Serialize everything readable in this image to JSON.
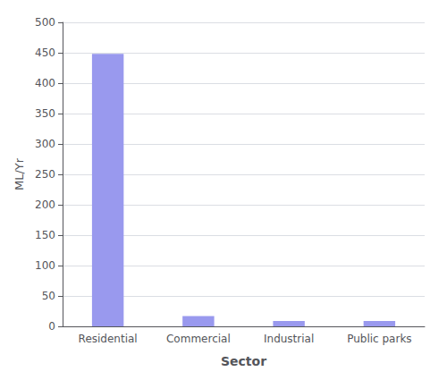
{
  "chart_data": {
    "type": "bar",
    "categories": [
      "Residential",
      "Commercial",
      "Industrial",
      "Public parks"
    ],
    "values": [
      448,
      17,
      9,
      9
    ],
    "color": "#9999ee",
    "xlabel": "Sector",
    "ylabel": "ML/Yr",
    "ylim": [
      0,
      500
    ],
    "yticks": [
      0,
      50,
      100,
      150,
      200,
      250,
      300,
      350,
      400,
      450,
      500
    ],
    "grid": true
  }
}
